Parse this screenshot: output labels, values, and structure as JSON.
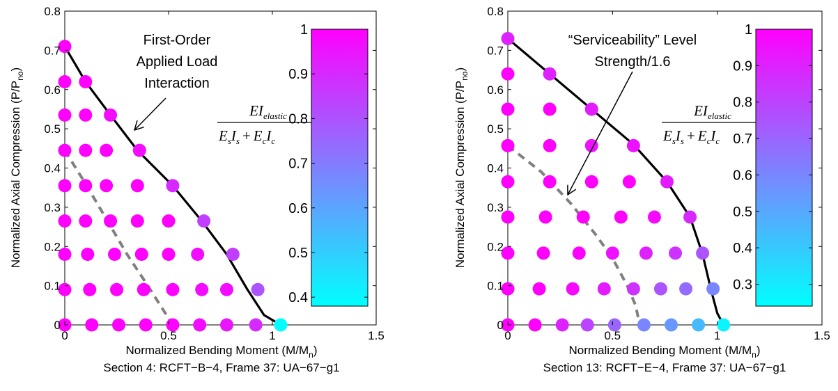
{
  "chart_data": [
    {
      "type": "scatter",
      "xlabel": "Normalized Bending Moment (M/M",
      "xlabel_sub": "n",
      "xlabel_end": ")",
      "ylabel": "Normalized Axial Compression (P/P",
      "ylabel_sub": "no",
      "ylabel_end": ")",
      "caption": "Section 4: RCFT−B−4, Frame 37: UA−67−g1",
      "xlim": [
        0,
        1.5
      ],
      "ylim": [
        0,
        0.8
      ],
      "xticks": [
        "0",
        "0.5",
        "1",
        "1.5"
      ],
      "yticks": [
        "0",
        "0.1",
        "0.2",
        "0.3",
        "0.4",
        "0.5",
        "0.6",
        "0.7",
        "0.8"
      ],
      "colorbar": {
        "range": [
          0.38,
          1.0
        ],
        "ticks": [
          "0.4",
          "0.5",
          "0.6",
          "0.7",
          "0.8",
          "0.9",
          "1"
        ],
        "colormap": [
          "#00ffff",
          "#ff00ff"
        ]
      },
      "equation": {
        "num": "EI",
        "num_sub": "elastic",
        "den_E1": "E",
        "den_s1": "s",
        "den_I1": "I",
        "den_s2": "s",
        "plus": "+",
        "den_E2": "E",
        "den_c1": "c",
        "den_I2": "I",
        "den_c2": "c"
      },
      "annotation_lines": [
        "First-Order",
        "Applied Load",
        "Interaction"
      ],
      "interaction_curve": [
        [
          0,
          0.71
        ],
        [
          0.1,
          0.62
        ],
        [
          0.22,
          0.535
        ],
        [
          0.35,
          0.445
        ],
        [
          0.52,
          0.355
        ],
        [
          0.66,
          0.265
        ],
        [
          0.78,
          0.18
        ],
        [
          0.88,
          0.09
        ],
        [
          0.96,
          0.025
        ],
        [
          1.04,
          0.0
        ]
      ],
      "service_curve": [
        [
          0,
          0.445
        ],
        [
          0.1,
          0.36
        ],
        [
          0.2,
          0.27
        ],
        [
          0.3,
          0.18
        ],
        [
          0.4,
          0.1
        ],
        [
          0.46,
          0.05
        ],
        [
          0.52,
          0.0
        ]
      ],
      "points": [
        {
          "x": 0,
          "y": 0.71,
          "v": 1.0
        },
        {
          "x": 0,
          "y": 0.62,
          "v": 1.0
        },
        {
          "x": 0.1,
          "y": 0.62,
          "v": 1.0
        },
        {
          "x": 0,
          "y": 0.535,
          "v": 1.0
        },
        {
          "x": 0.1,
          "y": 0.535,
          "v": 1.0
        },
        {
          "x": 0.22,
          "y": 0.535,
          "v": 0.97
        },
        {
          "x": 0,
          "y": 0.445,
          "v": 1.0
        },
        {
          "x": 0.1,
          "y": 0.445,
          "v": 1.0
        },
        {
          "x": 0.2,
          "y": 0.445,
          "v": 1.0
        },
        {
          "x": 0.36,
          "y": 0.445,
          "v": 0.97
        },
        {
          "x": 0,
          "y": 0.355,
          "v": 1.0
        },
        {
          "x": 0.1,
          "y": 0.355,
          "v": 1.0
        },
        {
          "x": 0.2,
          "y": 0.355,
          "v": 1.0
        },
        {
          "x": 0.35,
          "y": 0.355,
          "v": 1.0
        },
        {
          "x": 0.52,
          "y": 0.355,
          "v": 0.9
        },
        {
          "x": 0,
          "y": 0.265,
          "v": 1.0
        },
        {
          "x": 0.1,
          "y": 0.265,
          "v": 1.0
        },
        {
          "x": 0.22,
          "y": 0.265,
          "v": 1.0
        },
        {
          "x": 0.35,
          "y": 0.265,
          "v": 1.0
        },
        {
          "x": 0.5,
          "y": 0.265,
          "v": 1.0
        },
        {
          "x": 0.67,
          "y": 0.265,
          "v": 0.85
        },
        {
          "x": 0,
          "y": 0.18,
          "v": 1.0
        },
        {
          "x": 0.11,
          "y": 0.18,
          "v": 1.0
        },
        {
          "x": 0.24,
          "y": 0.18,
          "v": 1.0
        },
        {
          "x": 0.37,
          "y": 0.18,
          "v": 1.0
        },
        {
          "x": 0.5,
          "y": 0.18,
          "v": 1.0
        },
        {
          "x": 0.64,
          "y": 0.18,
          "v": 0.97
        },
        {
          "x": 0.81,
          "y": 0.18,
          "v": 0.85
        },
        {
          "x": 0,
          "y": 0.09,
          "v": 1.0
        },
        {
          "x": 0.12,
          "y": 0.09,
          "v": 1.0
        },
        {
          "x": 0.25,
          "y": 0.09,
          "v": 1.0
        },
        {
          "x": 0.38,
          "y": 0.09,
          "v": 1.0
        },
        {
          "x": 0.52,
          "y": 0.09,
          "v": 1.0
        },
        {
          "x": 0.66,
          "y": 0.09,
          "v": 0.97
        },
        {
          "x": 0.78,
          "y": 0.09,
          "v": 0.97
        },
        {
          "x": 0.93,
          "y": 0.09,
          "v": 0.8
        },
        {
          "x": 0,
          "y": 0.0,
          "v": 1.0
        },
        {
          "x": 0.13,
          "y": 0.0,
          "v": 1.0
        },
        {
          "x": 0.26,
          "y": 0.0,
          "v": 1.0
        },
        {
          "x": 0.39,
          "y": 0.0,
          "v": 1.0
        },
        {
          "x": 0.52,
          "y": 0.0,
          "v": 1.0
        },
        {
          "x": 0.65,
          "y": 0.0,
          "v": 0.97
        },
        {
          "x": 0.78,
          "y": 0.0,
          "v": 0.95
        },
        {
          "x": 0.92,
          "y": 0.0,
          "v": 0.9
        },
        {
          "x": 1.04,
          "y": 0.0,
          "v": 0.38
        }
      ]
    },
    {
      "type": "scatter",
      "xlabel": "Normalized Bending Moment (M/M",
      "xlabel_sub": "n",
      "xlabel_end": ")",
      "ylabel": "Normalized Axial Compression (P/P",
      "ylabel_sub": "no",
      "ylabel_end": ")",
      "caption": "Section 13: RCFT−E−4, Frame 37: UA−67−g1",
      "xlim": [
        0,
        1.5
      ],
      "ylim": [
        0,
        0.8
      ],
      "xticks": [
        "0",
        "0.5",
        "1",
        "1.5"
      ],
      "yticks": [
        "0",
        "0.1",
        "0.2",
        "0.3",
        "0.4",
        "0.5",
        "0.6",
        "0.7",
        "0.8"
      ],
      "colorbar": {
        "range": [
          0.24,
          1.0
        ],
        "ticks": [
          "0.3",
          "0.4",
          "0.5",
          "0.6",
          "0.7",
          "0.8",
          "0.9",
          "1"
        ],
        "colormap": [
          "#00ffff",
          "#ff00ff"
        ]
      },
      "equation": {
        "num": "EI",
        "num_sub": "elastic",
        "den_E1": "E",
        "den_s1": "s",
        "den_I1": "I",
        "den_s2": "s",
        "plus": "+",
        "den_E2": "E",
        "den_c1": "c",
        "den_I2": "I",
        "den_c2": "c"
      },
      "annotation_lines": [
        "“Serviceability” Level",
        "Strength/1.6"
      ],
      "interaction_curve": [
        [
          0,
          0.73
        ],
        [
          0.2,
          0.64
        ],
        [
          0.4,
          0.55
        ],
        [
          0.6,
          0.46
        ],
        [
          0.76,
          0.365
        ],
        [
          0.87,
          0.275
        ],
        [
          0.93,
          0.18
        ],
        [
          0.97,
          0.09
        ],
        [
          1.0,
          0.03
        ],
        [
          1.03,
          0.0
        ]
      ],
      "service_curve": [
        [
          0,
          0.457
        ],
        [
          0.16,
          0.39
        ],
        [
          0.3,
          0.31
        ],
        [
          0.42,
          0.23
        ],
        [
          0.5,
          0.17
        ],
        [
          0.57,
          0.1
        ],
        [
          0.61,
          0.05
        ],
        [
          0.63,
          0.0
        ]
      ],
      "points": [
        {
          "x": 0,
          "y": 0.73,
          "v": 0.9
        },
        {
          "x": 0,
          "y": 0.64,
          "v": 1.0
        },
        {
          "x": 0.2,
          "y": 0.64,
          "v": 0.9
        },
        {
          "x": 0,
          "y": 0.55,
          "v": 1.0
        },
        {
          "x": 0.2,
          "y": 0.55,
          "v": 1.0
        },
        {
          "x": 0.4,
          "y": 0.55,
          "v": 0.92
        },
        {
          "x": 0,
          "y": 0.457,
          "v": 1.0
        },
        {
          "x": 0.2,
          "y": 0.457,
          "v": 1.0
        },
        {
          "x": 0.4,
          "y": 0.457,
          "v": 0.95
        },
        {
          "x": 0.6,
          "y": 0.457,
          "v": 0.95
        },
        {
          "x": 0,
          "y": 0.365,
          "v": 1.0
        },
        {
          "x": 0.2,
          "y": 0.365,
          "v": 1.0
        },
        {
          "x": 0.4,
          "y": 0.365,
          "v": 1.0
        },
        {
          "x": 0.58,
          "y": 0.365,
          "v": 1.0
        },
        {
          "x": 0.76,
          "y": 0.365,
          "v": 0.92
        },
        {
          "x": 0,
          "y": 0.275,
          "v": 1.0
        },
        {
          "x": 0.18,
          "y": 0.275,
          "v": 1.0
        },
        {
          "x": 0.36,
          "y": 0.275,
          "v": 1.0
        },
        {
          "x": 0.54,
          "y": 0.275,
          "v": 1.0
        },
        {
          "x": 0.7,
          "y": 0.275,
          "v": 0.97
        },
        {
          "x": 0.87,
          "y": 0.275,
          "v": 0.88
        },
        {
          "x": 0,
          "y": 0.183,
          "v": 1.0
        },
        {
          "x": 0.17,
          "y": 0.183,
          "v": 1.0
        },
        {
          "x": 0.34,
          "y": 0.183,
          "v": 1.0
        },
        {
          "x": 0.5,
          "y": 0.183,
          "v": 0.95
        },
        {
          "x": 0.66,
          "y": 0.183,
          "v": 0.9
        },
        {
          "x": 0.8,
          "y": 0.183,
          "v": 0.85
        },
        {
          "x": 0.93,
          "y": 0.183,
          "v": 0.75
        },
        {
          "x": 0,
          "y": 0.092,
          "v": 1.0
        },
        {
          "x": 0.15,
          "y": 0.092,
          "v": 1.0
        },
        {
          "x": 0.31,
          "y": 0.092,
          "v": 0.97
        },
        {
          "x": 0.46,
          "y": 0.092,
          "v": 0.92
        },
        {
          "x": 0.6,
          "y": 0.092,
          "v": 0.85
        },
        {
          "x": 0.73,
          "y": 0.092,
          "v": 0.75
        },
        {
          "x": 0.85,
          "y": 0.092,
          "v": 0.68
        },
        {
          "x": 0.98,
          "y": 0.092,
          "v": 0.6
        },
        {
          "x": 0,
          "y": 0.0,
          "v": 1.0
        },
        {
          "x": 0.13,
          "y": 0.0,
          "v": 1.0
        },
        {
          "x": 0.26,
          "y": 0.0,
          "v": 0.9
        },
        {
          "x": 0.38,
          "y": 0.0,
          "v": 0.8
        },
        {
          "x": 0.51,
          "y": 0.0,
          "v": 0.7
        },
        {
          "x": 0.65,
          "y": 0.0,
          "v": 0.6
        },
        {
          "x": 0.78,
          "y": 0.0,
          "v": 0.55
        },
        {
          "x": 0.91,
          "y": 0.0,
          "v": 0.45
        },
        {
          "x": 1.03,
          "y": 0.0,
          "v": 0.27
        }
      ]
    }
  ]
}
